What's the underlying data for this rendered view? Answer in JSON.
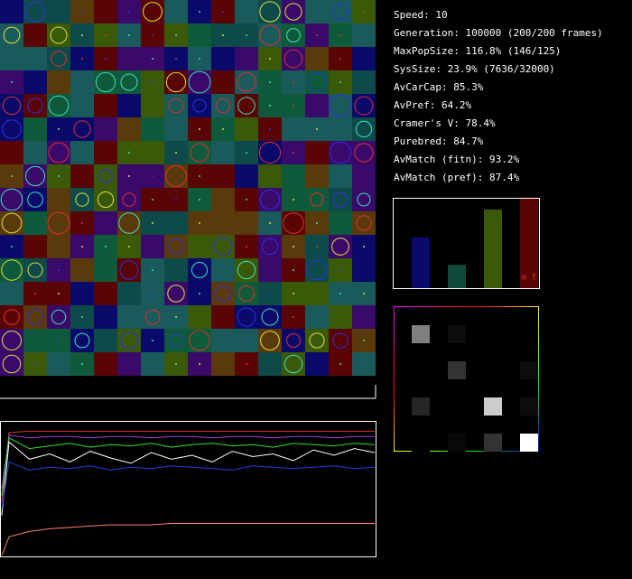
{
  "stats": [
    "Speed: 10",
    "Generation: 100000 (200/200 frames)",
    "MaxPopSize: 116.8% (146/125)",
    "SysSize: 23.9% (7636/32000)",
    "AvCarCap: 85.3%",
    "AvPref: 64.2%",
    "Cramer's V: 78.4%",
    "Purebred: 84.7%",
    "AvMatch (fitn): 93.2%",
    "AvMatch (pref): 87.4%"
  ],
  "bar_chart": {
    "type": "bar",
    "label": "m f",
    "ylim": [
      0,
      100
    ],
    "series": [
      {
        "color": "#0a0a6a",
        "values": [
          57
        ]
      },
      {
        "color": "#0f4a3a",
        "values": [
          26
        ]
      },
      {
        "color": "#3a5a0a",
        "values": [
          88
        ]
      },
      {
        "color": "#5a0505",
        "values": [
          100
        ]
      }
    ]
  },
  "matrix": {
    "type": "heatmap",
    "values": [
      [
        0.5,
        0.05,
        0,
        0
      ],
      [
        0,
        0.2,
        0,
        0.05
      ],
      [
        0.15,
        0,
        0.8,
        0.05
      ],
      [
        0,
        0.03,
        0.2,
        1.0
      ]
    ]
  },
  "history": {
    "type": "line",
    "ylim": [
      0,
      100
    ],
    "series": [
      {
        "color": "#e03030",
        "values": [
          40,
          92,
          93,
          93,
          93,
          93,
          93,
          93,
          93,
          93,
          93,
          93,
          93,
          93,
          93,
          93,
          93,
          93,
          93,
          93
        ]
      },
      {
        "color": "#a040e0",
        "values": [
          50,
          90,
          88,
          89,
          89,
          88,
          89,
          89,
          88,
          89,
          89,
          88,
          89,
          89,
          88,
          89,
          89,
          88,
          89,
          89
        ]
      },
      {
        "color": "#30e030",
        "values": [
          45,
          88,
          80,
          82,
          84,
          81,
          83,
          82,
          84,
          81,
          83,
          84,
          82,
          83,
          81,
          84,
          83,
          82,
          84,
          83
        ]
      },
      {
        "color": "#ffffff",
        "values": [
          30,
          85,
          72,
          76,
          70,
          78,
          73,
          69,
          77,
          72,
          75,
          70,
          78,
          74,
          76,
          71,
          79,
          75,
          80,
          77
        ]
      },
      {
        "color": "#2040e0",
        "values": [
          35,
          70,
          64,
          66,
          65,
          67,
          64,
          66,
          65,
          67,
          66,
          65,
          64,
          67,
          66,
          65,
          66,
          67,
          65,
          66
        ]
      },
      {
        "color": "#ff8070",
        "values": [
          0,
          14,
          18,
          20,
          21,
          22,
          23,
          23,
          23,
          24,
          24,
          24,
          24,
          24,
          24,
          24,
          24,
          24,
          24,
          24
        ]
      }
    ]
  }
}
